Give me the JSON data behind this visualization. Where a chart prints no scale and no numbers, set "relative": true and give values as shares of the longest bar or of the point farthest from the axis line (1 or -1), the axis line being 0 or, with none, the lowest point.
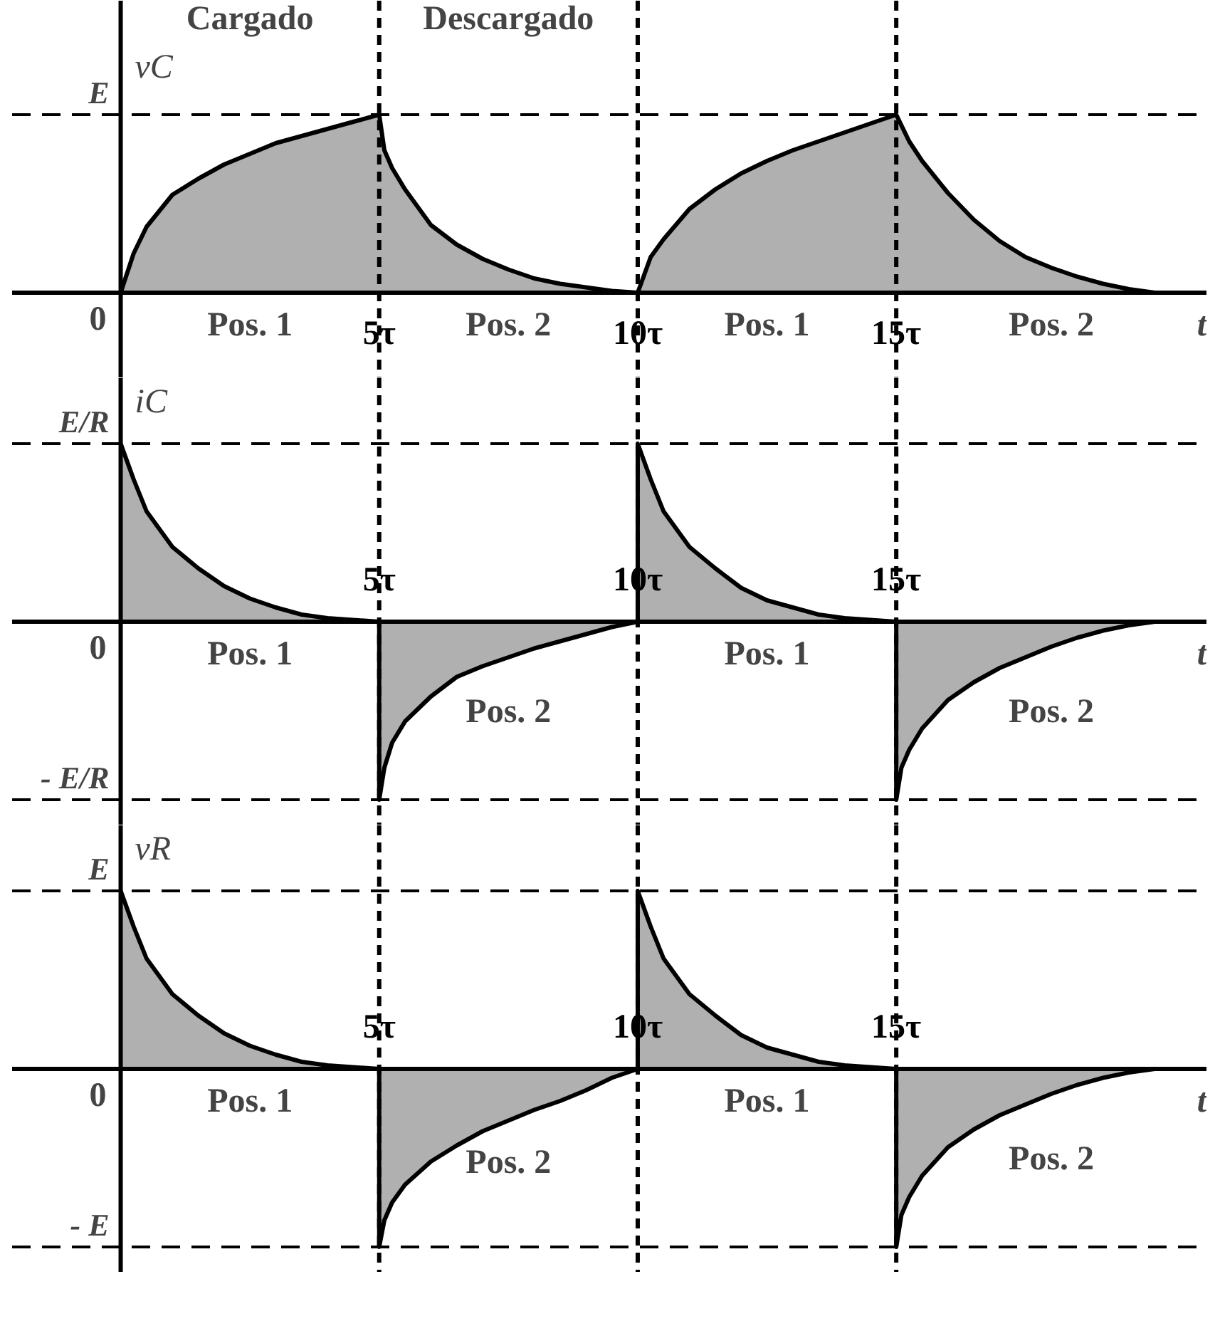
{
  "chart_data": [
    {
      "type": "area",
      "relative": true,
      "xlabel": "t",
      "ylabel": "vC",
      "xlim": [
        -2.1,
        21
      ],
      "xticks": [
        {
          "value": 5,
          "label": "5τ"
        },
        {
          "value": 10,
          "label": "10τ"
        },
        {
          "value": 15,
          "label": "15τ"
        }
      ],
      "series": [
        {
          "color": "#b0b0b0",
          "x": [
            0,
            0.25,
            0.5,
            1,
            1.5,
            2,
            2.5,
            3,
            3.5,
            4,
            4.5,
            5,
            5.1,
            5.25,
            5.5,
            6,
            6.5,
            7,
            7.5,
            8,
            8.5,
            9,
            9.5,
            10,
            10.25,
            10.5,
            11,
            11.5,
            12,
            12.5,
            13,
            13.5,
            14,
            14.5,
            15,
            15.25,
            15.5,
            16,
            16.5,
            17,
            17.5,
            18,
            18.5,
            19,
            19.5,
            20
          ],
          "values": [
            0,
            0.22,
            0.37,
            0.55,
            0.64,
            0.72,
            0.78,
            0.84,
            0.88,
            0.92,
            0.96,
            1,
            0.8,
            0.7,
            0.58,
            0.38,
            0.27,
            0.19,
            0.13,
            0.08,
            0.05,
            0.03,
            0.01,
            0,
            0.2,
            0.3,
            0.47,
            0.58,
            0.67,
            0.74,
            0.8,
            0.85,
            0.9,
            0.95,
            1,
            0.85,
            0.74,
            0.56,
            0.41,
            0.29,
            0.2,
            0.14,
            0.09,
            0.05,
            0.02,
            0
          ]
        }
      ],
      "ref_lines": [
        {
          "axis": "x",
          "value": 0,
          "label": "0",
          "color": "#000000",
          "line_style": "solid"
        },
        {
          "axis": "x",
          "value": 5,
          "color": "#000000",
          "line_style": "dashed"
        },
        {
          "axis": "x",
          "value": 10,
          "color": "#000000",
          "line_style": "dashed"
        },
        {
          "axis": "x",
          "value": 15,
          "color": "#000000",
          "line_style": "dashed"
        },
        {
          "axis": "y",
          "value": 1,
          "label": "E",
          "color": "#000000",
          "line_style": "dashed"
        }
      ],
      "annotations": [
        "Cargado",
        "Descargado",
        "Pos. 1",
        "Pos. 2",
        "Pos. 1",
        "Pos. 2"
      ],
      "grid": false,
      "marker": "none",
      "line_style": "solid"
    },
    {
      "type": "area",
      "relative": true,
      "xlabel": "t",
      "ylabel": "iC",
      "xlim": [
        -2.1,
        21
      ],
      "xticks": [
        {
          "value": 5,
          "label": "5τ"
        },
        {
          "value": 10,
          "label": "10τ"
        },
        {
          "value": 15,
          "label": "15τ"
        }
      ],
      "series": [
        {
          "color": "#b0b0b0",
          "x": [
            0,
            0.25,
            0.5,
            1,
            1.5,
            2,
            2.5,
            3,
            3.5,
            4,
            5,
            5,
            5.1,
            5.25,
            5.5,
            6,
            6.5,
            7,
            7.5,
            8,
            8.5,
            9,
            9.5,
            10,
            10,
            10.25,
            10.5,
            11,
            11.5,
            12,
            12.5,
            13,
            13.5,
            14,
            15,
            15,
            15.1,
            15.25,
            15.5,
            16,
            16.5,
            17,
            17.5,
            18,
            18.5,
            19,
            19.5,
            20
          ],
          "values": [
            1,
            0.8,
            0.62,
            0.42,
            0.3,
            0.2,
            0.13,
            0.08,
            0.04,
            0.02,
            0,
            -1,
            -0.82,
            -0.68,
            -0.56,
            -0.42,
            -0.31,
            -0.25,
            -0.2,
            -0.15,
            -0.11,
            -0.07,
            -0.03,
            0,
            1,
            0.8,
            0.62,
            0.42,
            0.3,
            0.19,
            0.12,
            0.08,
            0.04,
            0.02,
            0,
            -1,
            -0.82,
            -0.72,
            -0.6,
            -0.44,
            -0.34,
            -0.26,
            -0.2,
            -0.14,
            -0.09,
            -0.05,
            -0.02,
            0
          ]
        }
      ],
      "ref_lines": [
        {
          "axis": "x",
          "value": 0,
          "label": "0",
          "color": "#000000",
          "line_style": "solid"
        },
        {
          "axis": "x",
          "value": 5,
          "color": "#000000",
          "line_style": "dashed"
        },
        {
          "axis": "x",
          "value": 10,
          "color": "#000000",
          "line_style": "dashed"
        },
        {
          "axis": "x",
          "value": 15,
          "color": "#000000",
          "line_style": "dashed"
        },
        {
          "axis": "y",
          "value": 1,
          "label": "E/R",
          "color": "#000000",
          "line_style": "dashed"
        },
        {
          "axis": "y",
          "value": -1,
          "label": "- E/R",
          "color": "#000000",
          "line_style": "dashed"
        }
      ],
      "annotations": [
        "Pos. 1",
        "Pos. 2",
        "Pos. 1",
        "Pos. 2"
      ],
      "grid": false,
      "marker": "none",
      "line_style": "solid"
    },
    {
      "type": "area",
      "relative": true,
      "xlabel": "t",
      "ylabel": "vR",
      "xlim": [
        -2.1,
        21
      ],
      "xticks": [
        {
          "value": 5,
          "label": "5τ"
        },
        {
          "value": 10,
          "label": "10τ"
        },
        {
          "value": 15,
          "label": "15τ"
        }
      ],
      "series": [
        {
          "color": "#b0b0b0",
          "x": [
            0,
            0.25,
            0.5,
            1,
            1.5,
            2,
            2.5,
            3,
            3.5,
            4,
            5,
            5,
            5.1,
            5.25,
            5.5,
            6,
            6.5,
            7,
            7.5,
            8,
            8.5,
            9,
            9.5,
            10,
            10,
            10.25,
            10.5,
            11,
            11.5,
            12,
            12.5,
            13,
            13.5,
            14,
            15,
            15,
            15.1,
            15.25,
            15.5,
            16,
            16.5,
            17,
            17.5,
            18,
            18.5,
            19,
            19.5,
            20
          ],
          "values": [
            1,
            0.8,
            0.62,
            0.42,
            0.3,
            0.2,
            0.13,
            0.08,
            0.04,
            0.02,
            0,
            -1,
            -0.85,
            -0.75,
            -0.65,
            -0.52,
            -0.43,
            -0.35,
            -0.29,
            -0.23,
            -0.18,
            -0.12,
            -0.05,
            0,
            1,
            0.8,
            0.62,
            0.42,
            0.3,
            0.19,
            0.12,
            0.08,
            0.04,
            0.02,
            0,
            -1,
            -0.82,
            -0.72,
            -0.6,
            -0.44,
            -0.34,
            -0.26,
            -0.2,
            -0.14,
            -0.09,
            -0.05,
            -0.02,
            0
          ]
        }
      ],
      "ref_lines": [
        {
          "axis": "x",
          "value": 0,
          "label": "0",
          "color": "#000000",
          "line_style": "solid"
        },
        {
          "axis": "x",
          "value": 5,
          "color": "#000000",
          "line_style": "dashed"
        },
        {
          "axis": "x",
          "value": 10,
          "color": "#000000",
          "line_style": "dashed"
        },
        {
          "axis": "x",
          "value": 15,
          "color": "#000000",
          "line_style": "dashed"
        },
        {
          "axis": "y",
          "value": 1,
          "label": "E",
          "color": "#000000",
          "line_style": "dashed"
        },
        {
          "axis": "y",
          "value": -1,
          "label": "- E",
          "color": "#000000",
          "line_style": "dashed"
        }
      ],
      "annotations": [
        "Pos. 1",
        "Pos. 2",
        "Pos. 1",
        "Pos. 2"
      ],
      "grid": false,
      "marker": "none",
      "line_style": "solid"
    }
  ]
}
